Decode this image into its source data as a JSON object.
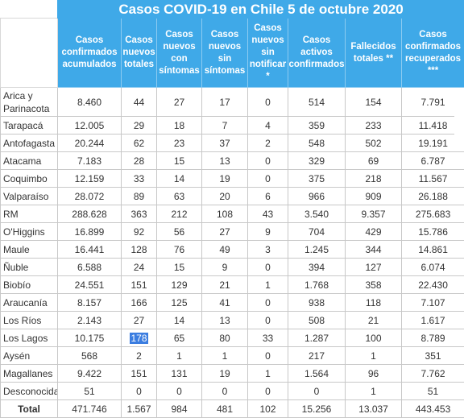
{
  "title": "Casos COVID-19 en Chile 5 de octubre 2020",
  "columns": [
    "Casos confirmados acumulados",
    "Casos nuevos totales",
    "Casos nuevos con síntomas",
    "Casos nuevos sin síntomas",
    "Casos nuevos sin notificar *",
    "Casos activos confirmados",
    "Fallecidos totales **",
    "Casos confirmados recuperados ***"
  ],
  "rows": [
    {
      "region": "Arica y Parinacota",
      "values": [
        "8.460",
        "44",
        "27",
        "17",
        "0",
        "514",
        "154",
        "7.791"
      ]
    },
    {
      "region": "Tarapacá",
      "values": [
        "12.005",
        "29",
        "18",
        "7",
        "4",
        "359",
        "233",
        "11.418"
      ]
    },
    {
      "region": "Antofagasta",
      "values": [
        "20.244",
        "62",
        "23",
        "37",
        "2",
        "548",
        "502",
        "19.191"
      ]
    },
    {
      "region": "Atacama",
      "values": [
        "7.183",
        "28",
        "15",
        "13",
        "0",
        "329",
        "69",
        "6.787"
      ]
    },
    {
      "region": "Coquimbo",
      "values": [
        "12.159",
        "33",
        "14",
        "19",
        "0",
        "375",
        "218",
        "11.567"
      ]
    },
    {
      "region": "Valparaíso",
      "values": [
        "28.072",
        "89",
        "63",
        "20",
        "6",
        "966",
        "909",
        "26.188"
      ]
    },
    {
      "region": "RM",
      "values": [
        "288.628",
        "363",
        "212",
        "108",
        "43",
        "3.540",
        "9.357",
        "275.683"
      ]
    },
    {
      "region": "O'Higgins",
      "values": [
        "16.899",
        "92",
        "56",
        "27",
        "9",
        "704",
        "429",
        "15.786"
      ]
    },
    {
      "region": "Maule",
      "values": [
        "16.441",
        "128",
        "76",
        "49",
        "3",
        "1.245",
        "344",
        "14.861"
      ]
    },
    {
      "region": "Ñuble",
      "values": [
        "6.588",
        "24",
        "15",
        "9",
        "0",
        "394",
        "127",
        "6.074"
      ]
    },
    {
      "region": "Biobío",
      "values": [
        "24.551",
        "151",
        "129",
        "21",
        "1",
        "1.768",
        "358",
        "22.430"
      ]
    },
    {
      "region": "Araucanía",
      "values": [
        "8.157",
        "166",
        "125",
        "41",
        "0",
        "938",
        "118",
        "7.107"
      ]
    },
    {
      "region": "Los Ríos",
      "values": [
        "2.143",
        "27",
        "14",
        "13",
        "0",
        "508",
        "21",
        "1.617"
      ]
    },
    {
      "region": "Los Lagos",
      "values": [
        "10.175",
        "178",
        "65",
        "80",
        "33",
        "1.287",
        "100",
        "8.789"
      ]
    },
    {
      "region": "Aysén",
      "values": [
        "568",
        "2",
        "1",
        "1",
        "0",
        "217",
        "1",
        "351"
      ]
    },
    {
      "region": "Magallanes",
      "values": [
        "9.422",
        "151",
        "131",
        "19",
        "1",
        "1.564",
        "96",
        "7.762"
      ]
    },
    {
      "region": "Desconocida",
      "values": [
        "51",
        "0",
        "0",
        "0",
        "0",
        "0",
        "1",
        "51"
      ]
    }
  ],
  "total": {
    "label": "Total",
    "values": [
      "471.746",
      "1.567",
      "984",
      "481",
      "102",
      "15.256",
      "13.037",
      "443.453"
    ]
  },
  "selected_cell": {
    "row": 13,
    "col": 1
  },
  "colors": {
    "header_bg": "#3fa9e8",
    "header_text": "#ffffff",
    "selection": "#3b7de0",
    "grid": "#c8c8c8"
  }
}
